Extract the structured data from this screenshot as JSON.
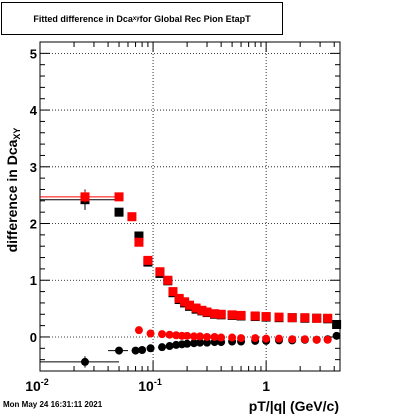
{
  "title": {
    "main": "Fitted difference in Dca",
    "sub": "xy",
    "tail": " for Global Rec Pion EtapT"
  },
  "timestamp": "Mon May 24 16:31:11 2021",
  "chart_data": {
    "type": "scatter",
    "title": "Fitted difference in Dca_xy for Global Rec Pion EtapT",
    "xlabel": "pT/|q| (GeV/c)",
    "ylabel": "difference in Dca_XY",
    "xscale": "log",
    "xlim": [
      0.01,
      4.5
    ],
    "ylim": [
      -0.6,
      5.2
    ],
    "grid": true,
    "x_ticks": [
      {
        "v": 0.01,
        "b": "10",
        "e": "-2"
      },
      {
        "v": 0.1,
        "b": "10",
        "e": "-1"
      },
      {
        "v": 1,
        "b": "1",
        "e": ""
      }
    ],
    "y_ticks": [
      0,
      1,
      2,
      3,
      4,
      5
    ],
    "series": [
      {
        "color": "#000000",
        "marker": "square",
        "points": [
          {
            "x": 0.025,
            "y": 2.42,
            "xerr": [
              0.015,
              0.025
            ],
            "yerr": 0.18
          },
          {
            "x": 0.05,
            "y": 2.2
          },
          {
            "x": 0.075,
            "y": 1.78
          },
          {
            "x": 0.09,
            "y": 1.32
          },
          {
            "x": 0.115,
            "y": 1.12
          },
          {
            "x": 0.135,
            "y": 0.99
          },
          {
            "x": 0.15,
            "y": 0.78
          },
          {
            "x": 0.17,
            "y": 0.66
          },
          {
            "x": 0.19,
            "y": 0.6
          },
          {
            "x": 0.21,
            "y": 0.54
          },
          {
            "x": 0.24,
            "y": 0.49
          },
          {
            "x": 0.27,
            "y": 0.46
          },
          {
            "x": 0.3,
            "y": 0.43
          },
          {
            "x": 0.35,
            "y": 0.4
          },
          {
            "x": 0.4,
            "y": 0.39
          },
          {
            "x": 0.5,
            "y": 0.38
          },
          {
            "x": 0.6,
            "y": 0.37
          },
          {
            "x": 0.8,
            "y": 0.36
          },
          {
            "x": 1.0,
            "y": 0.35
          },
          {
            "x": 1.3,
            "y": 0.34
          },
          {
            "x": 1.7,
            "y": 0.34
          },
          {
            "x": 2.2,
            "y": 0.33
          },
          {
            "x": 2.8,
            "y": 0.33
          },
          {
            "x": 3.5,
            "y": 0.32
          },
          {
            "x": 4.2,
            "y": 0.22
          }
        ]
      },
      {
        "color": "#ff0000",
        "marker": "square",
        "points": [
          {
            "x": 0.025,
            "y": 2.47,
            "xerr": [
              0.015,
              0.025
            ],
            "yerr": 0.1
          },
          {
            "x": 0.05,
            "y": 2.47
          },
          {
            "x": 0.065,
            "y": 2.12
          },
          {
            "x": 0.075,
            "y": 1.67
          },
          {
            "x": 0.09,
            "y": 1.35
          },
          {
            "x": 0.115,
            "y": 1.15
          },
          {
            "x": 0.135,
            "y": 1.0
          },
          {
            "x": 0.15,
            "y": 0.8
          },
          {
            "x": 0.17,
            "y": 0.68
          },
          {
            "x": 0.19,
            "y": 0.62
          },
          {
            "x": 0.21,
            "y": 0.56
          },
          {
            "x": 0.24,
            "y": 0.51
          },
          {
            "x": 0.27,
            "y": 0.47
          },
          {
            "x": 0.3,
            "y": 0.44
          },
          {
            "x": 0.35,
            "y": 0.41
          },
          {
            "x": 0.4,
            "y": 0.4
          },
          {
            "x": 0.5,
            "y": 0.39
          },
          {
            "x": 0.6,
            "y": 0.38
          },
          {
            "x": 0.8,
            "y": 0.37
          },
          {
            "x": 1.0,
            "y": 0.36
          },
          {
            "x": 1.3,
            "y": 0.35
          },
          {
            "x": 1.7,
            "y": 0.34
          },
          {
            "x": 2.2,
            "y": 0.34
          },
          {
            "x": 2.8,
            "y": 0.33
          },
          {
            "x": 3.5,
            "y": 0.33
          }
        ]
      },
      {
        "color": "#000000",
        "marker": "circle",
        "points": [
          {
            "x": 0.025,
            "y": -0.44,
            "xerr": [
              0.015,
              0.025
            ],
            "yerr": 0.1
          },
          {
            "x": 0.05,
            "y": -0.24,
            "xerr": [
              0.01,
              0.01
            ]
          },
          {
            "x": 0.07,
            "y": -0.24
          },
          {
            "x": 0.08,
            "y": -0.23
          },
          {
            "x": 0.095,
            "y": -0.2
          },
          {
            "x": 0.12,
            "y": -0.18
          },
          {
            "x": 0.14,
            "y": -0.16
          },
          {
            "x": 0.16,
            "y": -0.14
          },
          {
            "x": 0.18,
            "y": -0.13
          },
          {
            "x": 0.2,
            "y": -0.12
          },
          {
            "x": 0.23,
            "y": -0.11
          },
          {
            "x": 0.26,
            "y": -0.1
          },
          {
            "x": 0.3,
            "y": -0.1
          },
          {
            "x": 0.35,
            "y": -0.09
          },
          {
            "x": 0.4,
            "y": -0.09
          },
          {
            "x": 0.5,
            "y": -0.08
          },
          {
            "x": 0.6,
            "y": -0.08
          },
          {
            "x": 0.8,
            "y": -0.07
          },
          {
            "x": 1.0,
            "y": -0.07
          },
          {
            "x": 1.3,
            "y": -0.06
          },
          {
            "x": 1.7,
            "y": -0.06
          },
          {
            "x": 2.2,
            "y": -0.05
          },
          {
            "x": 2.8,
            "y": -0.05
          },
          {
            "x": 3.5,
            "y": -0.04
          },
          {
            "x": 4.2,
            "y": 0.02
          }
        ]
      },
      {
        "color": "#ff0000",
        "marker": "circle",
        "points": [
          {
            "x": 0.075,
            "y": 0.12
          },
          {
            "x": 0.095,
            "y": 0.06
          },
          {
            "x": 0.12,
            "y": 0.05
          },
          {
            "x": 0.14,
            "y": 0.04
          },
          {
            "x": 0.16,
            "y": 0.03
          },
          {
            "x": 0.18,
            "y": 0.02
          },
          {
            "x": 0.2,
            "y": 0.02
          },
          {
            "x": 0.23,
            "y": 0.01
          },
          {
            "x": 0.26,
            "y": 0.01
          },
          {
            "x": 0.3,
            "y": 0.0
          },
          {
            "x": 0.35,
            "y": 0.0
          },
          {
            "x": 0.4,
            "y": -0.01
          },
          {
            "x": 0.5,
            "y": -0.01
          },
          {
            "x": 0.6,
            "y": -0.02
          },
          {
            "x": 0.8,
            "y": -0.02
          },
          {
            "x": 1.0,
            "y": -0.03
          },
          {
            "x": 1.3,
            "y": -0.03
          },
          {
            "x": 1.7,
            "y": -0.04
          },
          {
            "x": 2.2,
            "y": -0.04
          },
          {
            "x": 2.8,
            "y": -0.05
          },
          {
            "x": 3.5,
            "y": -0.05
          }
        ]
      }
    ]
  }
}
